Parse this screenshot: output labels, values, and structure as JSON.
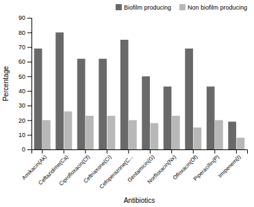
{
  "chart_data": {
    "type": "bar",
    "xlabel": "Antibiotics",
    "ylabel": "Percentage",
    "categories": [
      "Amikacin(Ak)",
      "Ceftazidime(Ca)",
      "Ciprofloxacin(Cf)",
      "Ceftriaxone(Ci)",
      "Cefoperazone(C...",
      "Gentamicin(G)",
      "Norfloxacin(Nx)",
      "Ofloxacin(Of)",
      "Piperacillin(P)",
      "Imipenem(I)"
    ],
    "series": [
      {
        "name": "Biofilm producing",
        "color": "#696969",
        "values": [
          69,
          80,
          62,
          62,
          75,
          50,
          43,
          69,
          43,
          19
        ]
      },
      {
        "name": "Non biofilm producing",
        "color": "#b8b8b8",
        "values": [
          20,
          26,
          23,
          23,
          20,
          18,
          23,
          15,
          20,
          8
        ]
      }
    ],
    "ylim": [
      0,
      90
    ],
    "yticks": [
      0,
      10,
      20,
      30,
      40,
      50,
      60,
      70,
      80,
      90
    ],
    "grid": false,
    "legend": "upper right"
  }
}
